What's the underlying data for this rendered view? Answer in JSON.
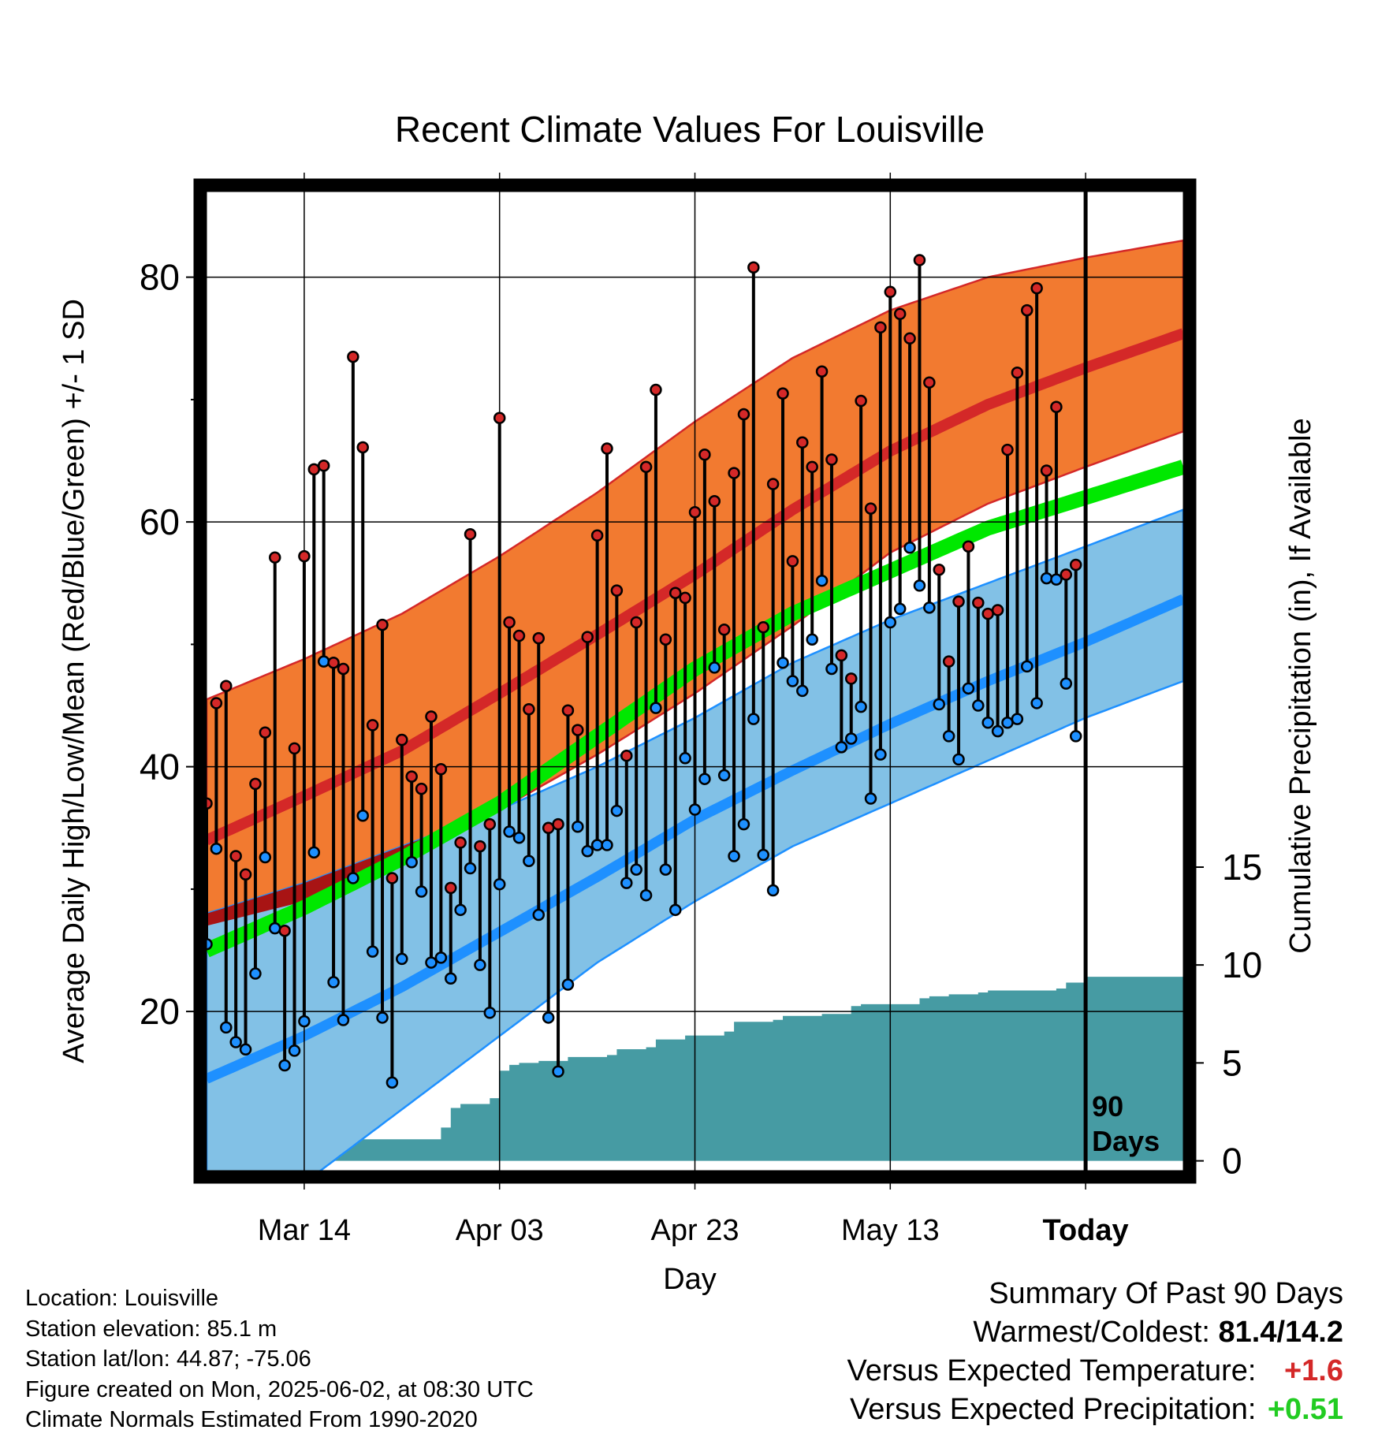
{
  "chart_data": {
    "type": "line",
    "title": "Recent Climate Values For Louisville",
    "xlabel": "Day",
    "ylabel": "Average Daily High/Low/Mean (Red/Blue/Green) +/- 1 SD",
    "y2label": "Cumulative Precipitation (in), If Available",
    "x_tick_labels": [
      "Mar 14",
      "Apr 03",
      "Apr 23",
      "May 13",
      "Today"
    ],
    "x_tick_days": [
      10,
      30,
      50,
      70,
      90
    ],
    "xlim": [
      0,
      100
    ],
    "ylim": [
      7,
      87
    ],
    "y_ticks": [
      20,
      40,
      60,
      80
    ],
    "y2lim": [
      -0.5,
      49.5
    ],
    "y2_ticks": [
      0,
      5,
      10,
      15
    ],
    "today_marker": {
      "day": 90,
      "label_line1": "90",
      "label_line2": "Days"
    },
    "normal_high": {
      "days": [
        0,
        10,
        20,
        30,
        40,
        50,
        60,
        70,
        80,
        90,
        100
      ],
      "mean": [
        34,
        37.6,
        41.3,
        46,
        50.8,
        55.7,
        61,
        65.8,
        69.6,
        72.6,
        75.4
      ],
      "upper": [
        45.5,
        48.8,
        52.5,
        57.2,
        62.4,
        68.2,
        73.4,
        77.3,
        80,
        81.6,
        83
      ],
      "lower": [
        27,
        29,
        33,
        36.5,
        41,
        46,
        51.5,
        57.5,
        61.5,
        64.5,
        67.4
      ]
    },
    "normal_low": {
      "days": [
        0,
        10,
        20,
        30,
        40,
        50,
        60,
        70,
        80,
        90,
        100
      ],
      "mean": [
        14.5,
        18,
        22,
        26.5,
        31,
        35.7,
        39.7,
        43.5,
        47,
        50.2,
        53.7
      ],
      "upper": [
        28,
        30.5,
        33.5,
        36.5,
        40,
        44,
        48.5,
        52,
        55,
        58,
        61
      ],
      "lower": [
        2.5,
        6,
        12,
        18,
        24,
        29,
        33.5,
        37,
        40.5,
        44,
        47
      ]
    },
    "normal_mean": {
      "days": [
        0,
        10,
        20,
        30,
        40,
        50,
        60,
        70,
        80,
        90,
        100
      ],
      "values": [
        25,
        28.5,
        32.5,
        37,
        42.5,
        48,
        52.5,
        56,
        59.5,
        62,
        64.5
      ]
    },
    "daily_high": [
      37,
      45.2,
      46.6,
      32.7,
      31.2,
      38.6,
      42.8,
      57.1,
      26.6,
      41.5,
      57.2,
      64.3,
      64.6,
      48.5,
      48,
      73.5,
      66.1,
      43.4,
      51.6,
      30.9,
      42.2,
      39.2,
      38.2,
      44.1,
      39.8,
      30.1,
      33.8,
      59,
      33.5,
      35.3,
      68.5,
      51.8,
      50.7,
      44.7,
      50.5,
      35,
      35.3,
      44.6,
      43,
      50.6,
      58.9,
      66,
      54.4,
      40.9,
      51.8,
      64.5,
      70.8,
      50.4,
      54.2,
      53.8,
      60.8,
      65.5,
      61.7,
      51.2,
      64,
      68.8,
      80.8,
      51.4,
      63.1,
      70.5,
      56.8,
      66.5,
      64.5,
      72.3,
      65.1,
      49.1,
      47.2,
      69.9,
      61.1,
      75.9,
      78.8,
      77,
      75,
      81.4,
      71.4,
      56.1,
      48.6,
      53.5,
      58,
      53.4,
      52.5,
      52.8,
      65.9,
      72.2,
      77.3,
      79.1,
      64.2,
      69.4,
      55.7,
      56.5
    ],
    "daily_low": [
      25.5,
      33.3,
      18.7,
      17.5,
      16.9,
      23.1,
      32.6,
      26.8,
      15.6,
      16.8,
      19.2,
      33,
      48.6,
      22.4,
      19.3,
      30.9,
      36,
      24.9,
      19.5,
      14.2,
      24.3,
      32.2,
      29.8,
      24,
      24.4,
      22.7,
      28.3,
      31.7,
      23.8,
      19.9,
      30.4,
      34.7,
      34.2,
      32.3,
      27.9,
      19.5,
      15.1,
      22.2,
      35.1,
      33.1,
      33.6,
      33.6,
      36.4,
      30.5,
      31.6,
      29.5,
      44.8,
      31.6,
      28.3,
      40.7,
      36.5,
      39,
      48.1,
      39.3,
      32.7,
      35.3,
      43.9,
      32.8,
      29.9,
      48.5,
      47,
      46.2,
      50.4,
      55.2,
      48,
      41.6,
      42.3,
      44.9,
      37.4,
      41,
      51.8,
      52.9,
      57.9,
      54.8,
      53,
      45.1,
      42.5,
      40.6,
      46.4,
      45,
      43.6,
      42.9,
      43.6,
      43.9,
      48.2,
      45.2,
      55.4,
      55.3,
      46.8,
      42.5
    ],
    "cumulative_precip": {
      "days": [
        0,
        1,
        2,
        9,
        10,
        11,
        12,
        23,
        24,
        25,
        26,
        29,
        30,
        31,
        32,
        34,
        37,
        41,
        42,
        45,
        46,
        49,
        50,
        53,
        54,
        58,
        59,
        62,
        63,
        66,
        67,
        72,
        73,
        74,
        76,
        79,
        80,
        82,
        83,
        87,
        88,
        89,
        90,
        100
      ],
      "values": [
        0,
        0.4,
        0.5,
        0.5,
        1,
        1,
        1.1,
        1.1,
        1.7,
        2.7,
        2.9,
        3.2,
        4.6,
        4.9,
        5,
        5.1,
        5.3,
        5.4,
        5.7,
        5.8,
        6.2,
        6.4,
        6.4,
        6.6,
        7.1,
        7.2,
        7.4,
        7.4,
        7.5,
        7.9,
        8,
        8,
        8.3,
        8.4,
        8.5,
        8.6,
        8.7,
        8.7,
        8.7,
        8.8,
        9.1,
        9.1,
        9.4,
        9.4
      ]
    },
    "colors": {
      "high_band": "#F27A30",
      "high_mean": "#D42828",
      "high_band_edge": "#D42828",
      "low_band": "#82C1E6",
      "low_mean": "#1E90FF",
      "low_band_edge": "#1E90FF",
      "overlap_band": "#A81414",
      "mean": "#00E800",
      "precip": "#469BA3",
      "high_dot": "#D42828",
      "low_dot": "#1E90FF"
    },
    "grid": true
  },
  "info": {
    "location": "Location: Louisville",
    "elevation": "Station elevation: 85.1 m",
    "latlon": "Station lat/lon: 44.87; -75.06",
    "created": "Figure created on Mon, 2025-06-02, at 08:30 UTC",
    "normals": "Climate Normals Estimated From 1990-2020"
  },
  "summary": {
    "heading": "Summary Of Past 90 Days",
    "warm_cold_label": "Warmest/Coldest:",
    "warm_cold_value": "81.4/14.2",
    "temp_label": "Versus Expected Temperature:",
    "temp_value": "+1.6",
    "temp_color": "#D42828",
    "precip_label": "Versus Expected Precipitation:",
    "precip_value": "+0.51",
    "precip_color": "#22CC22"
  }
}
